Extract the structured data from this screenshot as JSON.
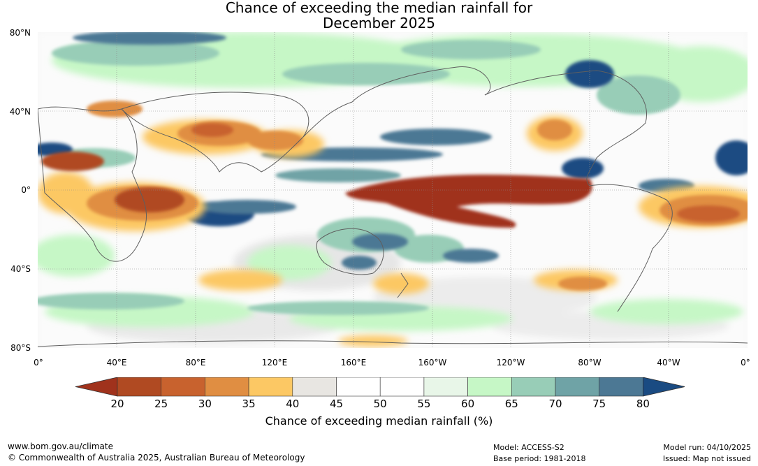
{
  "title": {
    "line1": "Chance of exceeding the median rainfall for",
    "line2": "December 2025"
  },
  "lat_labels": [
    "80°N",
    "40°N",
    "0°",
    "40°S",
    "80°S"
  ],
  "lon_labels": [
    "0°",
    "40°E",
    "80°E",
    "120°E",
    "160°E",
    "160°W",
    "120°W",
    "80°W",
    "40°W",
    "0°"
  ],
  "colorbar": {
    "ticks": [
      "20",
      "25",
      "30",
      "35",
      "40",
      "45",
      "50",
      "55",
      "60",
      "65",
      "70",
      "75",
      "80"
    ],
    "colors": [
      "#a0321c",
      "#b04a22",
      "#c8622e",
      "#e08e42",
      "#fcc864",
      "#e8e6e2",
      "#ffffff",
      "#ffffff",
      "#e8f6e8",
      "#c6f7c6",
      "#98cdb7",
      "#6fa3a6",
      "#4c7894",
      "#1a4b82"
    ],
    "label": "Chance of exceeding median rainfall (%)"
  },
  "footer": {
    "url": "www.bom.gov.au/climate",
    "copyright": "© Commonwealth of Australia 2025, Australian Bureau of Meteorology",
    "model": "Model: ACCESS-S2",
    "base_period": "Base period: 1981-2018",
    "model_run": "Model run: 04/10/2025",
    "issued": "Issued: Map not issued"
  }
}
